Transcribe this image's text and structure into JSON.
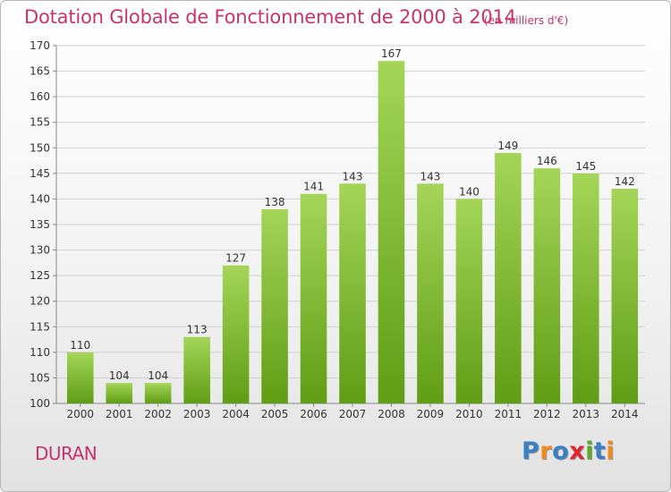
{
  "title": "Dotation Globale de Fonctionnement de 2000 à 2014",
  "subtitle": "(en milliers d'€)",
  "commune": "DURAN",
  "logo": {
    "text": "Proxiti",
    "letter_colors": [
      "#3a7fc4",
      "#f08a1c",
      "#3a7fc4",
      "#e0252c",
      "#5ea82c",
      "#3a7fc4",
      "#f08a1c"
    ]
  },
  "colors": {
    "title": "#c8336b",
    "bar_top": "#a4d558",
    "bar_bottom": "#5f9d14",
    "grid": "#d0d0d0"
  },
  "chart_data": {
    "type": "bar",
    "categories": [
      "2000",
      "2001",
      "2002",
      "2003",
      "2004",
      "2005",
      "2006",
      "2007",
      "2008",
      "2009",
      "2010",
      "2011",
      "2012",
      "2013",
      "2014"
    ],
    "values": [
      110,
      104,
      104,
      113,
      127,
      138,
      141,
      143,
      167,
      143,
      140,
      149,
      146,
      145,
      142
    ],
    "ylim": [
      100,
      170
    ],
    "yticks": [
      100,
      105,
      110,
      115,
      120,
      125,
      130,
      135,
      140,
      145,
      150,
      155,
      160,
      165,
      170
    ],
    "grid": true,
    "data_labels": true
  }
}
